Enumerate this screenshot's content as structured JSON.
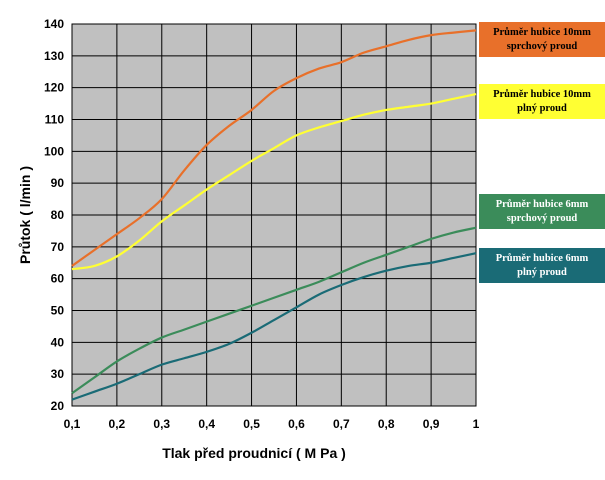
{
  "chart_data": {
    "type": "line",
    "xlabel": "Tlak před proudnicí  ( M Pa )",
    "ylabel": "Průtok ( l/min )",
    "x": [
      0.1,
      0.15,
      0.2,
      0.25,
      0.3,
      0.35,
      0.4,
      0.45,
      0.5,
      0.55,
      0.6,
      0.65,
      0.7,
      0.75,
      0.8,
      0.85,
      0.9,
      0.95,
      1.0
    ],
    "xticks": [
      "0,1",
      "0,2",
      "0,3",
      "0,4",
      "0,5",
      "0,6",
      "0,7",
      "0,8",
      "0,9",
      "1"
    ],
    "xtick_values": [
      0.1,
      0.2,
      0.3,
      0.4,
      0.5,
      0.6,
      0.7,
      0.8,
      0.9,
      1.0
    ],
    "xlim": [
      0.1,
      1.0
    ],
    "yticks": [
      20,
      30,
      40,
      50,
      60,
      70,
      80,
      90,
      100,
      110,
      120,
      130,
      140
    ],
    "ylim": [
      20,
      140
    ],
    "grid": true,
    "plot_background": "#c0c0c0",
    "legend_position": "right",
    "series": [
      {
        "name": "Průměr hubice 10mm\nsprchový proud",
        "color": "#e8702a",
        "text_color": "#000000",
        "values": [
          64,
          69,
          74,
          79,
          85,
          94,
          102,
          108,
          113,
          119,
          123,
          126,
          128,
          131,
          133,
          135,
          136.5,
          137.3,
          138
        ]
      },
      {
        "name": "Průměr hubice 10mm\nplný proud",
        "color": "#ffff33",
        "text_color": "#000000",
        "values": [
          63,
          64,
          67,
          72,
          78,
          83,
          88,
          92.5,
          97,
          101,
          105,
          107.5,
          109.5,
          111.5,
          113,
          114,
          115,
          116.5,
          118
        ]
      },
      {
        "name": "Průměr hubice 6mm\nsprchový proud",
        "color": "#3b8c5a",
        "text_color": "#ffffff",
        "values": [
          24,
          29,
          34,
          38,
          41.5,
          44,
          46.5,
          49,
          51.5,
          54,
          56.5,
          59,
          62,
          65,
          67.5,
          70,
          72.5,
          74.5,
          76
        ]
      },
      {
        "name": "Průměr hubice 6mm\nplný proud",
        "color": "#1a6b76",
        "text_color": "#ffffff",
        "values": [
          22,
          24.5,
          27,
          30,
          33,
          35,
          37,
          39.5,
          43,
          47,
          51,
          55,
          58,
          60.5,
          62.5,
          64,
          65,
          66.5,
          68
        ]
      }
    ]
  }
}
